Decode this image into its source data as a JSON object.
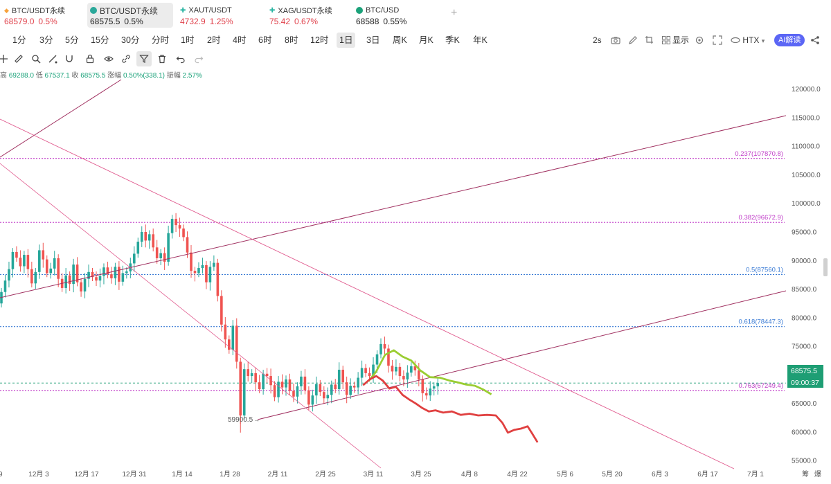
{
  "tabs": [
    {
      "symbol": "BTC/USDT永续",
      "price": "68579.0",
      "change": "0.5%",
      "icon_color": "#f7a23b",
      "icon": "bitcoin-diamond-icon",
      "active": false,
      "price_color": "#e0424c"
    },
    {
      "symbol": "BTC/USDT永续",
      "price": "68575.5",
      "change": "0.5%",
      "icon_color": "#2aa89a",
      "icon": "bitcoin-coin-icon",
      "active": true,
      "price_color": "#222222"
    },
    {
      "symbol": "XAUT/USDT",
      "price": "4732.9",
      "change": "1.25%",
      "icon_color": "#2bb5a3",
      "icon": "gold-coin-icon",
      "active": false,
      "price_color": "#e0424c"
    },
    {
      "symbol": "XAG/USDT永续",
      "price": "75.42",
      "change": "0.67%",
      "icon_color": "#2bb5a3",
      "icon": "silver-coin-icon",
      "active": false,
      "price_color": "#e0424c"
    },
    {
      "symbol": "BTC/USD",
      "price": "68588",
      "change": "0.55%",
      "icon_color": "#1ba27a",
      "icon": "bitcoin-green-icon",
      "active": false,
      "price_color": "#222222"
    }
  ],
  "intervals": [
    "1分",
    "3分",
    "5分",
    "15分",
    "30分",
    "分时",
    "1时",
    "2时",
    "4时",
    "6时",
    "8时",
    "12时",
    "1日",
    "3日",
    "周K",
    "月K",
    "季K",
    "年K"
  ],
  "active_interval": "1日",
  "right_tools": {
    "refresh": "2s",
    "display": "显示",
    "exchange": "HTX",
    "ai": "AI解读"
  },
  "ohlc": {
    "high_label": "高",
    "high": "69288.0",
    "low_label": "低",
    "low": "67537.1",
    "close_label": "收",
    "close": "68575.5",
    "change_label": "涨幅",
    "change": "0.50%(338.1)",
    "amp_label": "振幅",
    "amp": "2.57%"
  },
  "colors": {
    "up": "#26a69a",
    "down": "#ef5350",
    "channel": "#a03060",
    "trend": "#e05a8e",
    "fib_magenta": "#c03cc8",
    "fib_blue": "#3a7bd5",
    "projection_green": "#9acd32",
    "projection_red": "#e04040",
    "price_tag": "#1e9e74"
  },
  "chart_data": {
    "type": "candlestick",
    "price_axis": [
      "120000.0",
      "115000.0",
      "110000.0",
      "105000.0",
      "100000.0",
      "95000.0",
      "90000.0",
      "85000.0",
      "80000.0",
      "75000.0",
      "70000.0",
      "65000.0",
      "60000.0",
      "55000.0"
    ],
    "ylim": [
      52000,
      122500
    ],
    "x_labels": [
      "12月 3",
      "12月 17",
      "12月 31",
      "1月 14",
      "1月 28",
      "2月 11",
      "2月 25",
      "3月 11",
      "3月 25",
      "4月 8",
      "4月 22",
      "5月 6",
      "5月 20",
      "6月 3",
      "6月 17",
      "7月 1"
    ],
    "x_label_left_fragment": "9",
    "corner_labels": [
      "筹",
      "爆"
    ],
    "fib_levels": [
      {
        "label": "0.237(107870.8)",
        "price": 107870.8
      },
      {
        "label": "0.382(96672.9)",
        "price": 96672.9
      },
      {
        "label": "0.5(87560.1)",
        "price": 87560.1
      },
      {
        "label": "0.618(78447.3)",
        "price": 78447.3
      },
      {
        "label": "0.763(67249.4)",
        "price": 67249.4
      }
    ],
    "last_price": "68575.5",
    "countdown": "09:00:37",
    "low_annotation": "59900.5",
    "closes": [
      84500,
      86500,
      88500,
      91500,
      90500,
      89000,
      91000,
      88500,
      86000,
      88000,
      91800,
      90200,
      87800,
      88600,
      90400,
      86800,
      85200,
      87400,
      85900,
      89300,
      86200,
      84600,
      86800,
      88000,
      87100,
      86500,
      87300,
      88800,
      87600,
      86900,
      88900,
      86300,
      87800,
      88100,
      89500,
      91200,
      93300,
      95000,
      93500,
      94600,
      92300,
      90400,
      91300,
      89800,
      94800,
      97300,
      96200,
      95600,
      94100,
      91400,
      88200,
      87800,
      88700,
      89200,
      86200,
      88900,
      89600,
      83800,
      78800,
      76200,
      74400,
      78600,
      72300,
      62900,
      71000,
      69800,
      70300,
      68700,
      67500,
      70200,
      69800,
      68200,
      66100,
      68800,
      67800,
      69200,
      67200,
      66200,
      68000,
      69700,
      67300,
      64800,
      66400,
      68400,
      67000,
      65900,
      66500,
      68300,
      67500,
      70900,
      68700,
      66500,
      68100,
      67800,
      69500,
      71200,
      70300,
      69800,
      71800,
      73600,
      75400,
      74600,
      71600,
      70600,
      71400,
      69800,
      69200,
      70400,
      71500,
      70800,
      69200,
      66800,
      66400,
      67600,
      68000,
      68575
    ],
    "projection_green": [
      [
        67.2,
        68.9
      ],
      [
        68.6,
        70.6
      ],
      [
        70.2,
        73.5
      ],
      [
        71.8,
        74.3
      ],
      [
        73.4,
        73.2
      ],
      [
        75.0,
        72.5
      ],
      [
        76.6,
        70.8
      ],
      [
        78.4,
        69.6
      ],
      [
        80.2,
        69.5
      ],
      [
        82.0,
        69.0
      ],
      [
        83.4,
        68.7
      ],
      [
        85.0,
        68.3
      ],
      [
        86.6,
        68.1
      ],
      [
        88.2,
        67.4
      ],
      [
        89.6,
        66.6
      ]
    ],
    "projection_red": [
      [
        66.2,
        68.2
      ],
      [
        67.4,
        69.2
      ],
      [
        68.6,
        69.8
      ],
      [
        69.8,
        69.0
      ],
      [
        71.0,
        67.6
      ],
      [
        72.2,
        67.9
      ],
      [
        73.4,
        66.5
      ],
      [
        74.6,
        65.7
      ],
      [
        75.8,
        65.0
      ],
      [
        77.0,
        64.2
      ],
      [
        78.2,
        63.6
      ],
      [
        79.4,
        63.8
      ],
      [
        80.8,
        63.4
      ],
      [
        82.4,
        63.6
      ],
      [
        84.0,
        63.0
      ],
      [
        85.6,
        63.2
      ],
      [
        87.2,
        62.9
      ],
      [
        88.8,
        63.0
      ],
      [
        90.4,
        62.9
      ],
      [
        91.6,
        61.6
      ],
      [
        92.6,
        59.9
      ],
      [
        93.8,
        60.4
      ],
      [
        95.0,
        60.6
      ],
      [
        96.2,
        61.0
      ],
      [
        97.0,
        59.8
      ],
      [
        98.0,
        58.2
      ]
    ]
  }
}
